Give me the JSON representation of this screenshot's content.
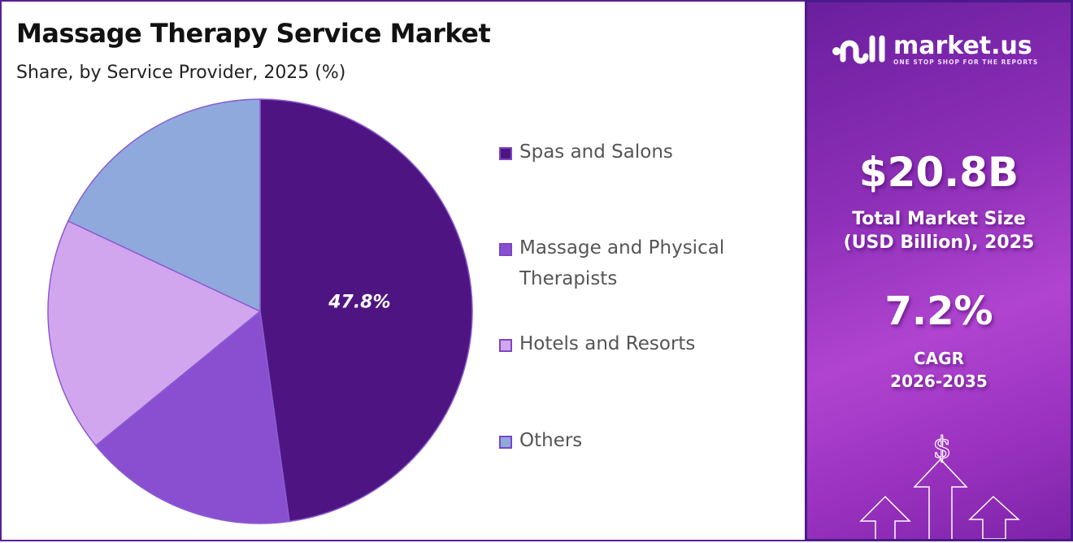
{
  "chart_data": {
    "type": "pie",
    "title": "Massage Therapy Service Market",
    "subtitle": "Share, by Service Provider, 2025 (%)",
    "categories": [
      "Spas and Salons",
      "Massage and Physical Therapists",
      "Hotels and Resorts",
      "Others"
    ],
    "values": [
      47.8,
      16.3,
      17.9,
      18.0
    ],
    "data_labels": [
      "47.8%",
      null,
      null,
      null
    ],
    "colors": [
      "#4e1582",
      "#8a4fd0",
      "#d2a6ee",
      "#8fa9dd"
    ],
    "start_angle": "top, clockwise",
    "legend_position": "right"
  },
  "panel": {
    "logo_name": "market.us",
    "logo_tagline": "ONE STOP SHOP FOR THE REPORTS",
    "market_size": "$20.8B",
    "market_size_label_1": "Total Market Size",
    "market_size_label_2": "(USD Billion), 2025",
    "cagr": "7.2%",
    "cagr_label": "CAGR",
    "cagr_period": "2026-2035",
    "dollar_symbol": "$"
  }
}
